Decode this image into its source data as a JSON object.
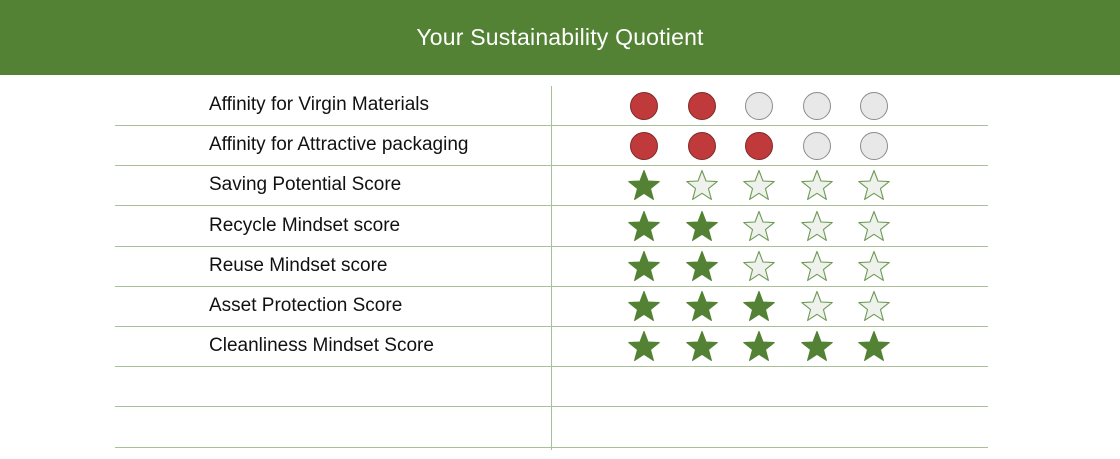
{
  "header": {
    "title": "Your Sustainability Quotient"
  },
  "colors": {
    "header_bg": "#548235",
    "dot_filled": "#c0393b",
    "dot_empty": "#e8e8e8",
    "star_filled": "#548235",
    "star_empty": "#eef1ec",
    "grid_line": "#a9c097"
  },
  "rows": [
    {
      "label": "Affinity for Virgin Materials",
      "indicator": "dot-icon",
      "filled": 2,
      "max": 5
    },
    {
      "label": "Affinity for Attractive packaging",
      "indicator": "dot-icon",
      "filled": 3,
      "max": 5
    },
    {
      "label": "Saving Potential Score",
      "indicator": "star-icon",
      "filled": 1,
      "max": 5
    },
    {
      "label": "Recycle Mindset score",
      "indicator": "star-icon",
      "filled": 2,
      "max": 5
    },
    {
      "label": "Reuse Mindset score",
      "indicator": "star-icon",
      "filled": 2,
      "max": 5
    },
    {
      "label": "Asset Protection Score",
      "indicator": "star-icon",
      "filled": 3,
      "max": 5
    },
    {
      "label": "Cleanliness Mindset Score",
      "indicator": "star-icon",
      "filled": 5,
      "max": 5
    },
    {
      "label": "",
      "indicator": "",
      "filled": 0,
      "max": 0
    },
    {
      "label": "",
      "indicator": "",
      "filled": 0,
      "max": 0
    }
  ]
}
